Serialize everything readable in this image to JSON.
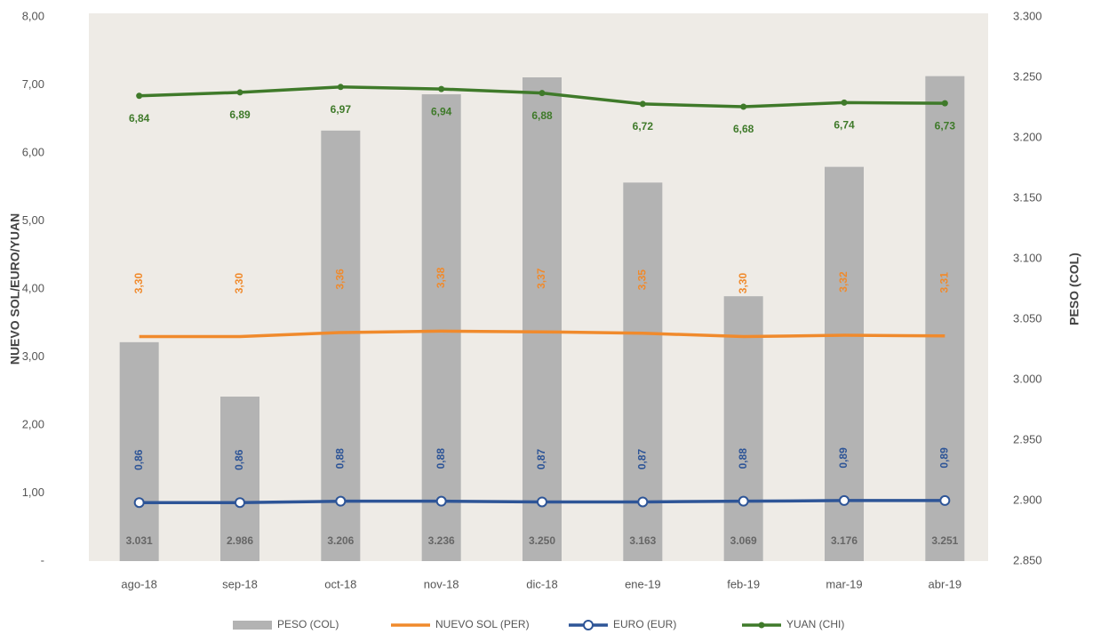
{
  "chart_data": {
    "type": "bar",
    "y_label": "NUEVO SOL/EURO/YUAN",
    "y2_label": "PESO (COL)",
    "categories": [
      "ago-18",
      "sep-18",
      "oct-18",
      "nov-18",
      "dic-18",
      "ene-19",
      "feb-19",
      "mar-19",
      "abr-19"
    ],
    "ylim": [
      0,
      8
    ],
    "yticks": [
      {
        "value": 0,
        "label": "-"
      },
      {
        "value": 1,
        "label": "1,00"
      },
      {
        "value": 2,
        "label": "2,00"
      },
      {
        "value": 3,
        "label": "3,00"
      },
      {
        "value": 4,
        "label": "4,00"
      },
      {
        "value": 5,
        "label": "5,00"
      },
      {
        "value": 6,
        "label": "6,00"
      },
      {
        "value": 7,
        "label": "7,00"
      },
      {
        "value": 8,
        "label": "8,00"
      }
    ],
    "y2lim": [
      2850,
      3300
    ],
    "y2ticks": [
      {
        "value": 2850,
        "label": "2.850"
      },
      {
        "value": 2900,
        "label": "2.900"
      },
      {
        "value": 2950,
        "label": "2.950"
      },
      {
        "value": 3000,
        "label": "3.000"
      },
      {
        "value": 3050,
        "label": "3.050"
      },
      {
        "value": 3100,
        "label": "3.100"
      },
      {
        "value": 3150,
        "label": "3.150"
      },
      {
        "value": 3200,
        "label": "3.200"
      },
      {
        "value": 3250,
        "label": "3.250"
      },
      {
        "value": 3300,
        "label": "3.300"
      }
    ],
    "series": [
      {
        "name": "PESO (COL)",
        "kind": "bar",
        "axis": "y2",
        "color": "#b3b3b3",
        "values": [
          3031,
          2986,
          3206,
          3236,
          3250,
          3163,
          3069,
          3176,
          3251
        ],
        "value_labels": [
          "3.031",
          "2.986",
          "3.206",
          "3.236",
          "3.250",
          "3.163",
          "3.069",
          "3.176",
          "3.251"
        ]
      },
      {
        "name": "NUEVO SOL (PER)",
        "kind": "line",
        "color": "#f08a2c",
        "values": [
          3.3,
          3.3,
          3.36,
          3.38,
          3.37,
          3.35,
          3.3,
          3.32,
          3.31
        ],
        "value_labels": [
          "3,30",
          "3,30",
          "3,36",
          "3,38",
          "3,37",
          "3,35",
          "3,30",
          "3,32",
          "3,31"
        ]
      },
      {
        "name": "EURO (EUR)",
        "kind": "line",
        "color": "#2e5597",
        "values": [
          0.86,
          0.86,
          0.88,
          0.88,
          0.87,
          0.87,
          0.88,
          0.89,
          0.89
        ],
        "value_labels": [
          "0,86",
          "0,86",
          "0,88",
          "0,88",
          "0,87",
          "0,87",
          "0,88",
          "0,89",
          "0,89"
        ]
      },
      {
        "name": "YUAN (CHI)",
        "kind": "line",
        "color": "#3f7a2a",
        "values": [
          6.84,
          6.89,
          6.97,
          6.94,
          6.88,
          6.72,
          6.68,
          6.74,
          6.73
        ],
        "value_labels": [
          "6,84",
          "6,89",
          "6,97",
          "6,94",
          "6,88",
          "6,72",
          "6,68",
          "6,74",
          "6,73"
        ]
      }
    ]
  }
}
